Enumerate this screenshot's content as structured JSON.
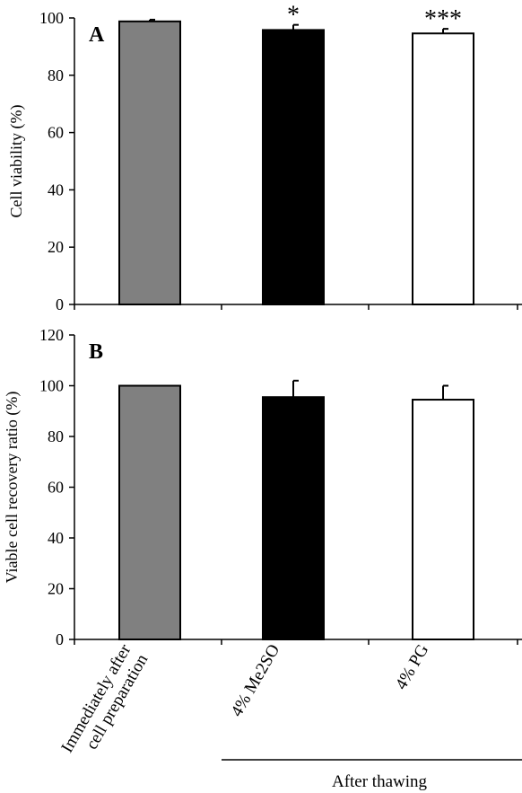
{
  "chart_data": [
    {
      "panel": "A",
      "type": "bar",
      "ylabel": "Cell viability (%)",
      "ylim": [
        0,
        100
      ],
      "yticks": [
        0,
        20,
        40,
        60,
        80,
        100
      ],
      "categories": [
        "Immediately after cell preparation",
        "4% Me2SO",
        "4% PG"
      ],
      "values": [
        98.8,
        95.8,
        94.6
      ],
      "errors": [
        0.6,
        1.8,
        1.6
      ],
      "significance": [
        "",
        "*",
        "***"
      ],
      "colors": [
        "#808080",
        "#000000",
        "#ffffff"
      ]
    },
    {
      "panel": "B",
      "type": "bar",
      "ylabel": "Viable cell recovery ratio (%)",
      "ylim": [
        0,
        120
      ],
      "yticks": [
        0,
        20,
        40,
        60,
        80,
        100,
        120
      ],
      "categories": [
        "Immediately after cell preparation",
        "4% Me2SO",
        "4% PG"
      ],
      "values": [
        100,
        95.5,
        94.5
      ],
      "errors": [
        0,
        6.5,
        5.5
      ],
      "colors": [
        "#808080",
        "#000000",
        "#ffffff"
      ]
    }
  ],
  "xaxis": {
    "category_labels": [
      "Immediately after\ncell preparation",
      "4% Me2SO",
      "4% PG"
    ],
    "group_label": "After thawing"
  }
}
